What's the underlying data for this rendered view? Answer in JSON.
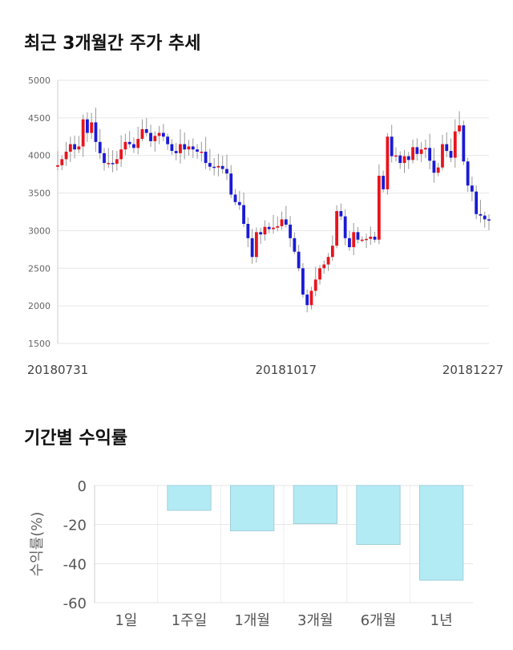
{
  "section1": {
    "title": "최근 3개월간 주가 추세"
  },
  "section2": {
    "title": "기간별 수익률"
  },
  "colors": {
    "up": "#e8141c",
    "down": "#1a1ad6",
    "bar_fill": "#b3ebf5",
    "bar_stroke": "#9ecfda",
    "grid": "#e6e6e6"
  },
  "chart_data": [
    {
      "type": "candlestick",
      "y_ticks": [
        1500,
        2000,
        2500,
        3000,
        3500,
        4000,
        4500,
        5000
      ],
      "ylim": [
        1500,
        5000
      ],
      "x_tick_labels": [
        {
          "label": "20180731",
          "index": 0
        },
        {
          "label": "20181017",
          "index": 54
        },
        {
          "label": "20181227",
          "index": 103
        }
      ],
      "close": [
        3870,
        3950,
        4050,
        4150,
        4080,
        4120,
        4480,
        4300,
        4440,
        4180,
        4030,
        3900,
        3900,
        3890,
        3950,
        4080,
        4180,
        4150,
        4100,
        4220,
        4350,
        4300,
        4190,
        4260,
        4300,
        4250,
        4150,
        4060,
        4030,
        4150,
        4080,
        4120,
        4080,
        4050,
        4050,
        3900,
        3850,
        3840,
        3860,
        3820,
        3760,
        3480,
        3380,
        3340,
        3090,
        2900,
        2650,
        2980,
        2950,
        3050,
        3020,
        3040,
        3060,
        3150,
        3080,
        2900,
        2720,
        2500,
        2150,
        2010,
        2200,
        2350,
        2500,
        2550,
        2650,
        2800,
        3260,
        3190,
        2900,
        2780,
        2980,
        2880,
        2880,
        2890,
        2920,
        2880,
        3730,
        3550,
        4250,
        3990,
        4000,
        3900,
        3990,
        3940,
        4110,
        4020,
        4080,
        4100,
        3930,
        3770,
        3840,
        4150,
        4060,
        3970,
        4320,
        4400,
        3920,
        3600,
        3520,
        3220,
        3200,
        3150,
        3140
      ],
      "dates_shown": [
        "20180731",
        "20181017",
        "20181227"
      ],
      "notes": "values approximate"
    },
    {
      "type": "bar",
      "categories": [
        "1일",
        "1주일",
        "1개월",
        "3개월",
        "6개월",
        "1년"
      ],
      "values": [
        0,
        -12.7,
        -23.2,
        -19.5,
        -30.2,
        -48.5
      ],
      "ylabel": "수익률(%)",
      "ylim": [
        -60,
        0
      ],
      "y_ticks": [
        0,
        -20,
        -40,
        -60
      ]
    }
  ]
}
